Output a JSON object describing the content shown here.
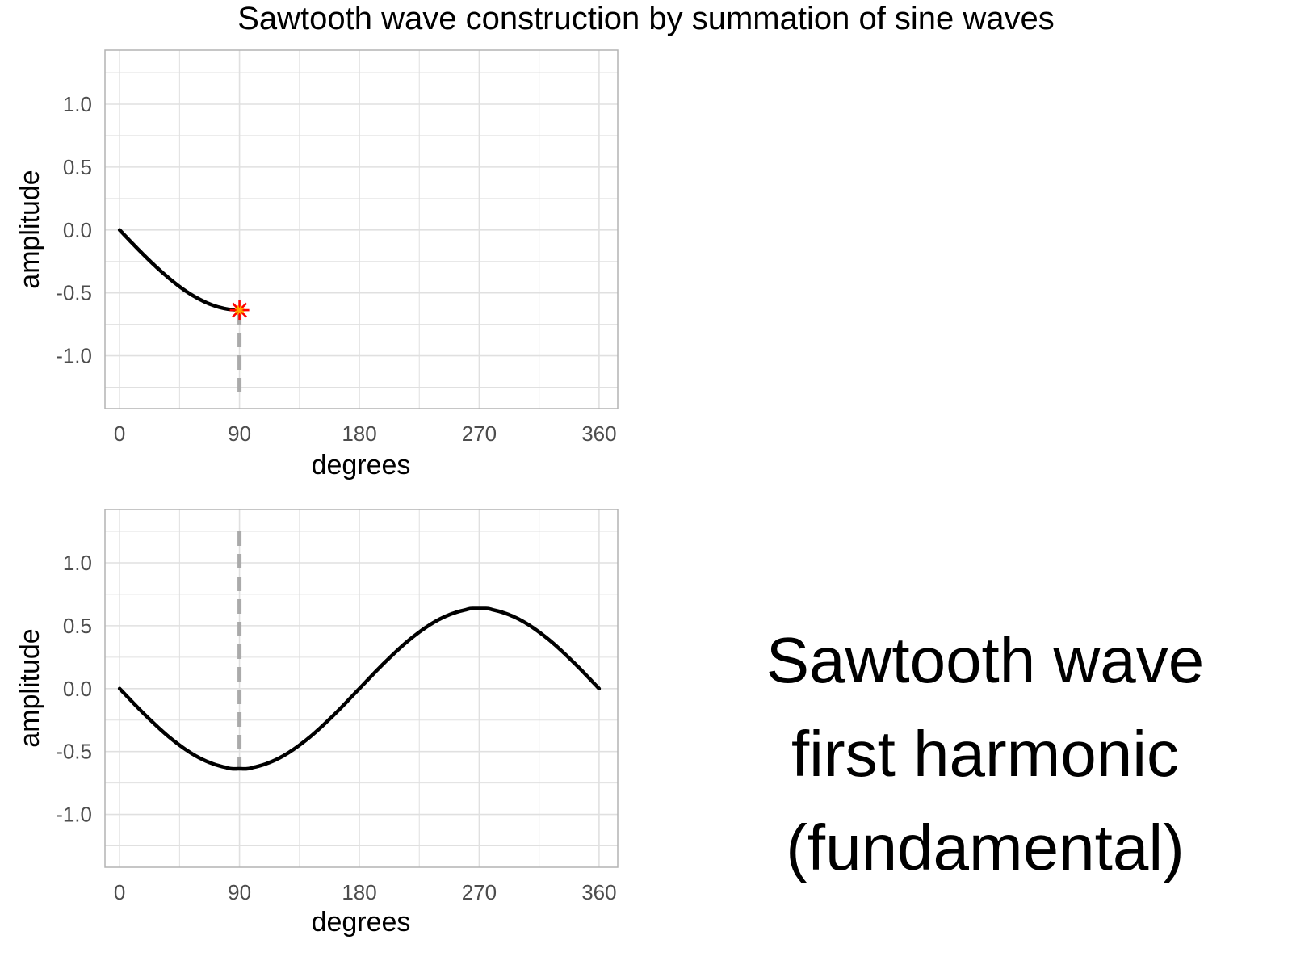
{
  "title": "Sawtooth wave construction by summation of sine waves",
  "caption": {
    "line1": "Sawtooth wave",
    "line2": "first harmonic",
    "line3": "(fundamental)"
  },
  "colors": {
    "curve": "#000000",
    "marker_outer": "#ff0000",
    "marker_inner": "#ffa500",
    "cursor_line": "#aaaaaa",
    "grid": "#e0e0e0",
    "panel_border": "#b3b3b3"
  },
  "chart_data": [
    {
      "type": "line",
      "xlabel": "degrees",
      "ylabel": "amplitude",
      "xlim": [
        -11,
        374
      ],
      "ylim": [
        -1.42,
        1.43
      ],
      "xticks": [
        0,
        90,
        180,
        270,
        360
      ],
      "xtick_labels": [
        "0",
        "90",
        "180",
        "270",
        "360"
      ],
      "yticks": [
        1.0,
        0.5,
        0.0,
        -0.5,
        -1.0
      ],
      "ytick_labels": [
        "1.0",
        "0.5",
        "0.0",
        "-0.5",
        "-1.0"
      ],
      "grid": true,
      "series": [
        {
          "x": [
            0,
            10,
            20,
            30,
            40,
            50,
            60,
            70,
            80,
            90
          ],
          "y": [
            0.0,
            -0.111,
            -0.218,
            -0.318,
            -0.409,
            -0.488,
            -0.551,
            -0.598,
            -0.627,
            -0.637
          ]
        }
      ],
      "cursor": {
        "x": 90,
        "y_from": -0.637,
        "y_to": -1.3
      },
      "marker": {
        "x": 90,
        "y": -0.637,
        "shape": "asterisk"
      }
    },
    {
      "type": "line",
      "xlabel": "degrees",
      "ylabel": "amplitude",
      "xlim": [
        -11,
        374
      ],
      "ylim": [
        -1.42,
        1.43
      ],
      "xticks": [
        0,
        90,
        180,
        270,
        360
      ],
      "xtick_labels": [
        "0",
        "90",
        "180",
        "270",
        "360"
      ],
      "yticks": [
        1.0,
        0.5,
        0.0,
        -0.5,
        -1.0
      ],
      "ytick_labels": [
        "1.0",
        "0.5",
        "0.0",
        "-0.5",
        "-1.0"
      ],
      "grid": true,
      "series": [
        {
          "x": [
            0,
            20,
            40,
            60,
            80,
            90,
            100,
            120,
            140,
            160,
            180,
            200,
            220,
            240,
            260,
            270,
            280,
            300,
            320,
            340,
            360
          ],
          "y": [
            0.0,
            -0.218,
            -0.409,
            -0.551,
            -0.627,
            -0.637,
            -0.627,
            -0.551,
            -0.409,
            -0.218,
            0.0,
            0.218,
            0.409,
            0.551,
            0.627,
            0.637,
            0.627,
            0.551,
            0.409,
            0.218,
            0.0
          ]
        }
      ],
      "cursor": {
        "x": 90,
        "y_from": 1.25,
        "y_to": -0.637
      }
    }
  ]
}
